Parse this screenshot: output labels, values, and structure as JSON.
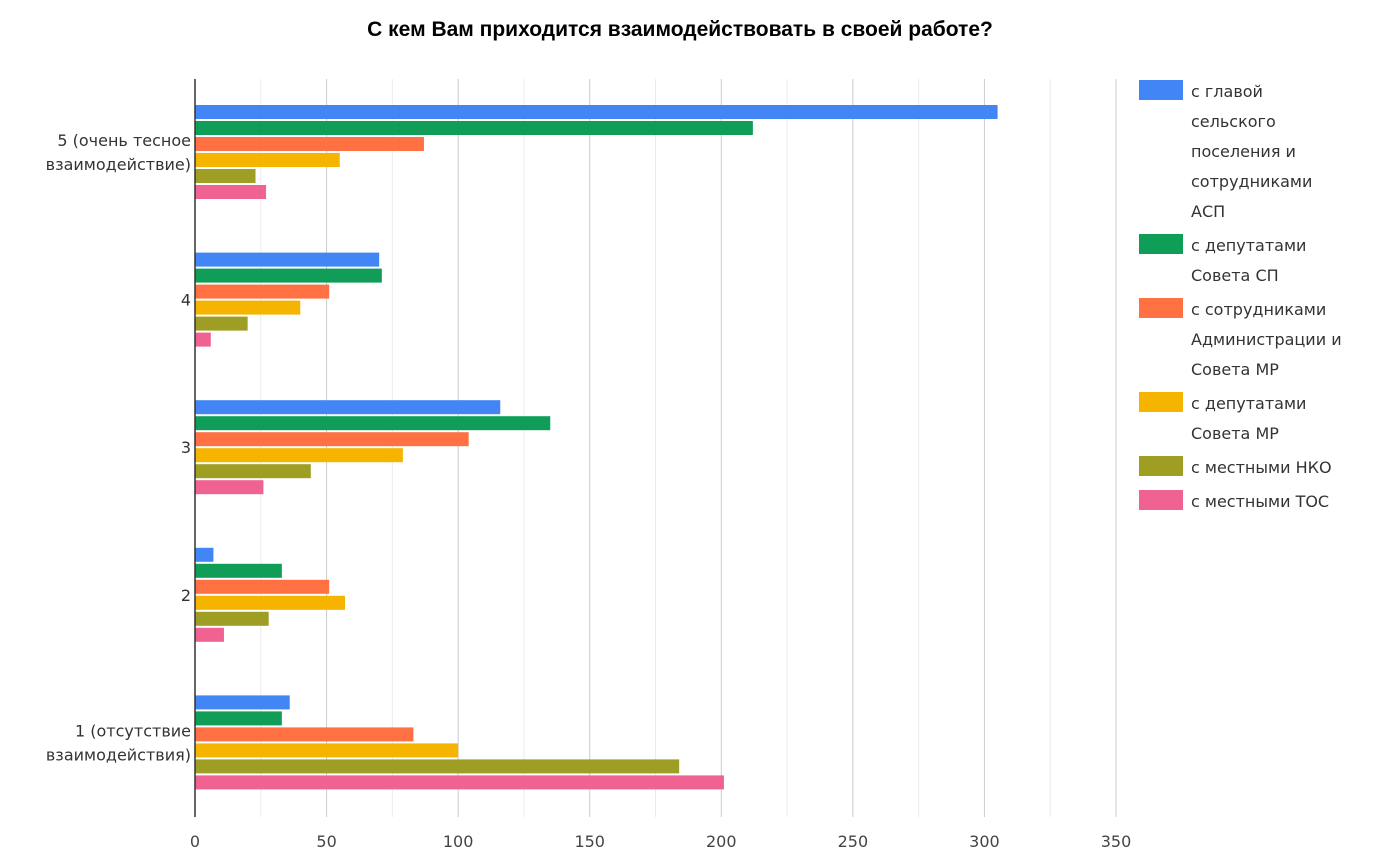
{
  "chart_data": {
    "type": "bar",
    "orientation": "horizontal",
    "title": "С кем Вам приходится взаимодействовать в своей работе?",
    "xlabel": "",
    "ylabel": "",
    "xlim": [
      0,
      350
    ],
    "x_ticks": [
      0,
      50,
      100,
      150,
      200,
      250,
      300,
      350
    ],
    "grid": true,
    "legend_position": "right",
    "categories": [
      [
        "5 (очень тесное",
        "взаимодействие)"
      ],
      [
        "4"
      ],
      [
        "3"
      ],
      [
        "2"
      ],
      [
        "1 (отсутствие",
        "взаимодействия)"
      ]
    ],
    "series": [
      {
        "name": "с главой сельского поселения и сотрудниками АСП",
        "legend_lines": [
          "с главой",
          "сельского",
          "поселения и",
          "сотрудниками",
          "АСП"
        ],
        "color": "#4285f4",
        "values": [
          305,
          70,
          116,
          7,
          36
        ]
      },
      {
        "name": "с депутатами Совета СП",
        "legend_lines": [
          "с депутатами",
          "Совета СП"
        ],
        "color": "#0f9d58",
        "values": [
          212,
          71,
          135,
          33,
          33
        ]
      },
      {
        "name": "с сотрудниками Администрации и Совета МР",
        "legend_lines": [
          "с сотрудниками",
          "Администрации и",
          "Совета МР"
        ],
        "color": "#ff7043",
        "values": [
          87,
          51,
          104,
          51,
          83
        ]
      },
      {
        "name": "с депутатами Совета МР",
        "legend_lines": [
          "с депутатами",
          "Совета МР"
        ],
        "color": "#f4b400",
        "values": [
          55,
          40,
          79,
          57,
          100
        ]
      },
      {
        "name": "с местными НКО",
        "legend_lines": [
          "с местными НКО"
        ],
        "color": "#9e9d24",
        "values": [
          23,
          20,
          44,
          28,
          184
        ]
      },
      {
        "name": "с местными ТОС",
        "legend_lines": [
          "с местными ТОС"
        ],
        "color": "#f06292",
        "values": [
          27,
          6,
          26,
          11,
          201
        ]
      }
    ]
  }
}
